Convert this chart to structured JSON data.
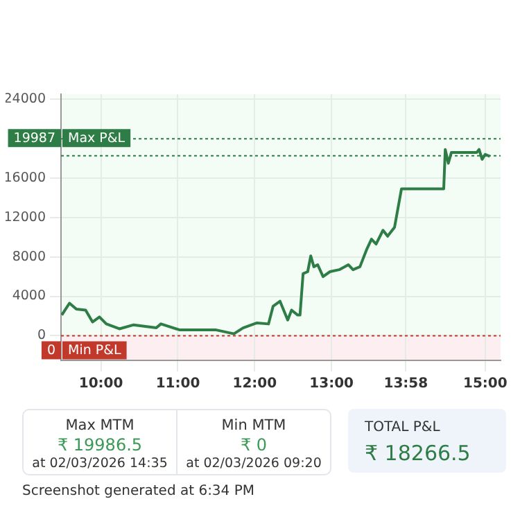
{
  "chart_data": {
    "type": "line",
    "x": [
      9.49,
      9.59,
      9.68,
      9.8,
      9.89,
      9.98,
      10.07,
      10.24,
      10.42,
      10.72,
      10.78,
      11.02,
      11.26,
      11.49,
      11.73,
      11.85,
      12.03,
      12.18,
      12.24,
      12.33,
      12.43,
      12.48,
      12.56,
      12.59,
      12.63,
      12.69,
      12.73,
      12.77,
      12.82,
      12.89,
      12.98,
      13.1,
      13.22,
      13.28,
      13.37,
      13.46,
      13.52,
      13.58,
      13.67,
      13.73,
      13.82,
      13.91,
      14.46,
      14.48,
      14.52,
      14.56,
      14.89,
      14.92,
      14.96,
      15,
      15.06
    ],
    "series": [
      {
        "color": "#2e7d46",
        "values": [
          2100,
          3300,
          2700,
          2600,
          1400,
          1900,
          1200,
          700,
          1100,
          800,
          1200,
          600,
          600,
          600,
          200,
          800,
          1300,
          1200,
          3000,
          3500,
          1600,
          2600,
          2100,
          2100,
          6300,
          6500,
          8100,
          7000,
          7200,
          6000,
          6500,
          6700,
          7200,
          6700,
          7000,
          8800,
          9800,
          9300,
          10700,
          10100,
          11000,
          14900,
          14900,
          18900,
          17500,
          18600,
          18600,
          18900,
          17900,
          18400,
          18200
        ]
      }
    ],
    "xlim": [
      9.48,
      15.2
    ],
    "xticks": [
      {
        "value": 10,
        "label": "10:00"
      },
      {
        "value": 11,
        "label": "11:00"
      },
      {
        "value": 12,
        "label": "12:00"
      },
      {
        "value": 13,
        "label": "13:00"
      },
      {
        "value": 13.967,
        "label": "13:58"
      },
      {
        "value": 15,
        "label": "15:00"
      }
    ],
    "ylim": [
      -2500,
      24500
    ],
    "yticks": [
      0,
      4000,
      8000,
      12000,
      16000,
      24000
    ],
    "grid": true,
    "marker": "none",
    "line_style": "solid",
    "ref_lines": [
      {
        "axis": "y",
        "value": 19987,
        "label": "19987 Max P&L",
        "color": "#2e7d46",
        "line_style": "dotted"
      },
      {
        "axis": "y",
        "value": 18266.5,
        "color": "#2e7d46",
        "line_style": "dotted"
      },
      {
        "axis": "y",
        "value": 0,
        "label": "0 Min P&L",
        "color": "#c0392b",
        "line_style": "dotted"
      }
    ],
    "bands": [
      {
        "axis": "y",
        "from": -2500,
        "to": 0,
        "color": "#fdeef1"
      }
    ],
    "annotations": [
      "Max MTM",
      "₹ 19986.5",
      "at 02/03/2026 14:35",
      "Min MTM",
      "₹ 0",
      "at 02/03/2026 09:20",
      "TOTAL P&L",
      "₹ 18266.5",
      "Screenshot generated at 6:34 PM"
    ]
  }
}
